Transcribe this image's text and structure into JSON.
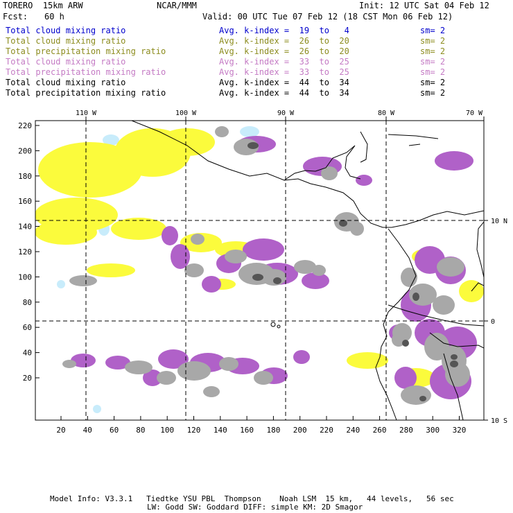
{
  "header": {
    "model": "TORERO  15km ARW",
    "org": "NCAR/MMM",
    "init": "Init: 12 UTC Sat 04 Feb 12",
    "fcst_label": "Fcst:",
    "fcst_value": "60 h",
    "valid": "Valid: 00 UTC Tue 07 Feb 12 (18 CST Mon 06 Feb 12)"
  },
  "legend": [
    {
      "name": "Total cloud mixing ratio",
      "range": "Avg. k-index =  19  to   4",
      "sm": "sm= 2",
      "color": "#0000cc"
    },
    {
      "name": "Total cloud mixing ratio",
      "range": "Avg. k-index =  26  to  20",
      "sm": "sm= 2",
      "color": "#8c8c1e"
    },
    {
      "name": "Total precipitation mixing ratio",
      "range": "Avg. k-index =  26  to  20",
      "sm": "sm= 2",
      "color": "#8c8c1e"
    },
    {
      "name": "Total cloud mixing ratio",
      "range": "Avg. k-index =  33  to  25",
      "sm": "sm= 2",
      "color": "#c47ac4"
    },
    {
      "name": "Total precipitation mixing ratio",
      "range": "Avg. k-index =  33  to  25",
      "sm": "sm= 2",
      "color": "#c47ac4"
    },
    {
      "name": "Total cloud mixing ratio",
      "range": "Avg. k-index =  44  to  34",
      "sm": "sm= 2",
      "color": "#000000"
    },
    {
      "name": "Total precipitation mixing ratio",
      "range": "Avg. k-index =  44  to  34",
      "sm": "sm= 2",
      "color": "#000000"
    }
  ],
  "map": {
    "lon_labels": [
      "110 W",
      "100 W",
      "90 W",
      "80 W",
      "70 W"
    ],
    "lat_labels": [
      "10 N",
      "0",
      "10 S"
    ],
    "y_ticks": [
      "220",
      "200",
      "180",
      "160",
      "140",
      "120",
      "100",
      "80",
      "60",
      "40",
      "20"
    ],
    "x_ticks": [
      "20",
      "40",
      "60",
      "80",
      "100",
      "120",
      "140",
      "160",
      "180",
      "200",
      "220",
      "240",
      "260",
      "280",
      "300",
      "320"
    ],
    "colors": {
      "yellow": "#fbfb3c",
      "purple": "#b061c8",
      "gray": "#a8a8a8",
      "dark": "#555555",
      "cyan": "#c8ecfb"
    }
  },
  "footer": {
    "line1": "Model Info: V3.3.1   Tiedtke YSU PBL  Thompson    Noah LSM  15 km,   44 levels,   56 sec",
    "line2": "LW: Godd SW: Goddard DIFF: simple KM: 2D Smagor"
  }
}
